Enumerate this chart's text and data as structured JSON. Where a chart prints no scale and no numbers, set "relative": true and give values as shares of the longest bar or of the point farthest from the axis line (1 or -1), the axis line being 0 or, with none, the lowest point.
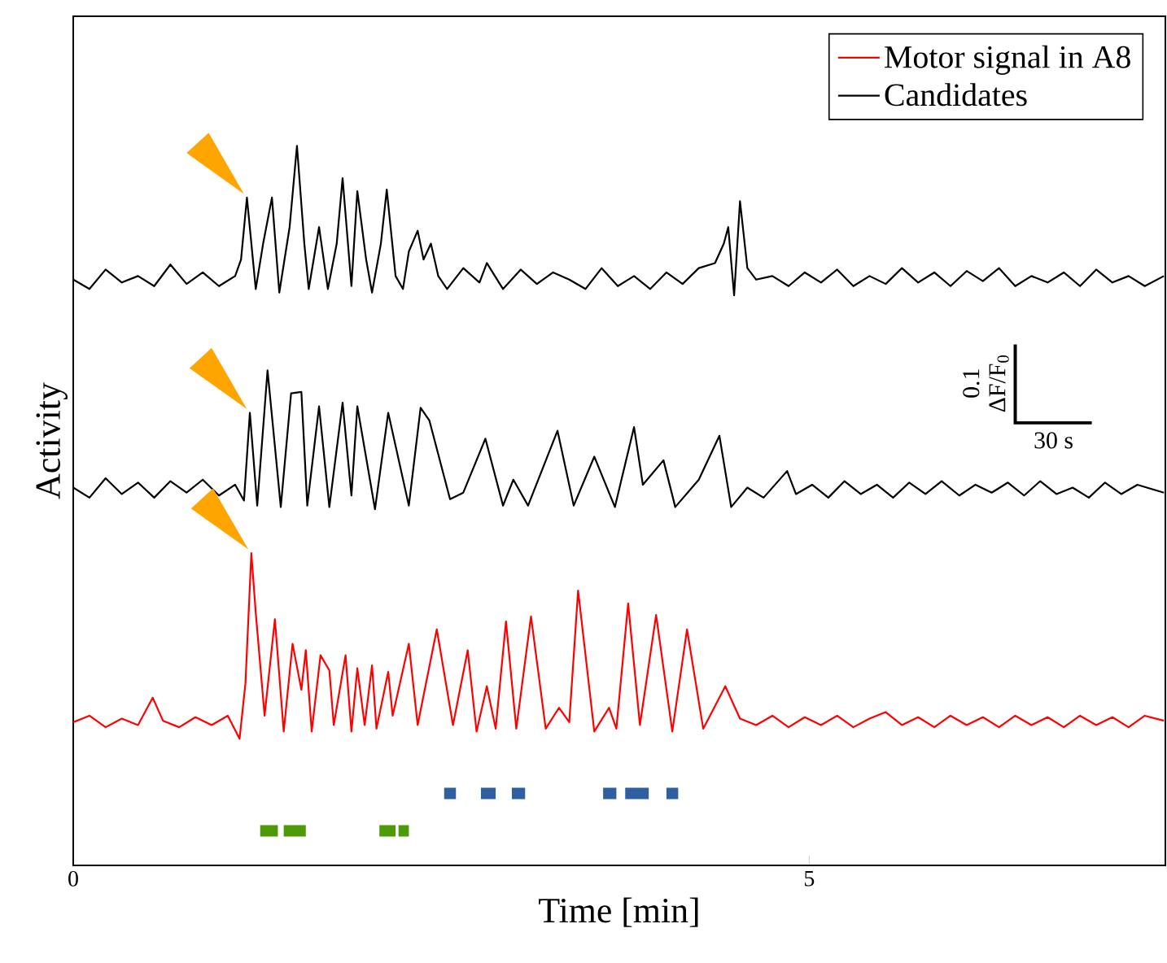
{
  "chart_data": {
    "type": "line",
    "relative": true,
    "xlabel": "Time [min]",
    "ylabel": "Activity",
    "xlim": [
      0,
      7.42
    ],
    "xticks": [
      0,
      5
    ],
    "legend": "top right",
    "annotations": [
      "0.1",
      "ΔF/F$_{0}$",
      "30 s"
    ],
    "series": [
      {
        "name": "Motor signal in A8",
        "color": "#ff0000",
        "x": [
          0,
          0.11,
          0.22,
          0.33,
          0.44,
          0.54,
          0.61,
          0.72,
          0.83,
          0.94,
          1.05,
          1.13,
          1.17,
          1.21,
          1.24,
          1.3,
          1.37,
          1.43,
          1.49,
          1.55,
          1.58,
          1.62,
          1.68,
          1.74,
          1.77,
          1.85,
          1.89,
          1.93,
          1.98,
          2.03,
          2.06,
          2.14,
          2.17,
          2.28,
          2.34,
          2.47,
          2.58,
          2.68,
          2.74,
          2.81,
          2.87,
          2.94,
          3.01,
          3.11,
          3.21,
          3.3,
          3.37,
          3.43,
          3.54,
          3.64,
          3.69,
          3.77,
          3.85,
          3.96,
          4.07,
          4.17,
          4.28,
          4.43,
          4.53,
          4.64,
          4.75,
          4.86,
          4.97,
          5.08,
          5.19,
          5.3,
          5.41,
          5.52,
          5.63,
          5.74,
          5.85,
          5.96,
          6.07,
          6.18,
          6.29,
          6.4,
          6.51,
          6.62,
          6.73,
          6.84,
          6.95,
          7.06,
          7.17,
          7.28,
          7.41
        ],
        "values": [
          0.199,
          0.208,
          0.192,
          0.204,
          0.195,
          0.233,
          0.201,
          0.192,
          0.206,
          0.195,
          0.208,
          0.176,
          0.253,
          0.434,
          0.351,
          0.208,
          0.342,
          0.186,
          0.308,
          0.244,
          0.299,
          0.186,
          0.292,
          0.271,
          0.195,
          0.292,
          0.186,
          0.274,
          0.195,
          0.278,
          0.19,
          0.269,
          0.208,
          0.308,
          0.195,
          0.328,
          0.195,
          0.299,
          0.186,
          0.249,
          0.19,
          0.339,
          0.19,
          0.346,
          0.19,
          0.219,
          0.199,
          0.382,
          0.186,
          0.219,
          0.19,
          0.364,
          0.195,
          0.348,
          0.186,
          0.328,
          0.19,
          0.249,
          0.204,
          0.195,
          0.208,
          0.192,
          0.206,
          0.195,
          0.208,
          0.192,
          0.204,
          0.213,
          0.195,
          0.206,
          0.192,
          0.208,
          0.195,
          0.206,
          0.192,
          0.208,
          0.195,
          0.206,
          0.192,
          0.208,
          0.195,
          0.206,
          0.192,
          0.208,
          0.201
        ]
      },
      {
        "name": "Candidates",
        "color": "#000000",
        "x": [
          0,
          0.11,
          0.22,
          0.33,
          0.44,
          0.55,
          0.66,
          0.77,
          0.88,
          0.99,
          1.1,
          1.14,
          1.18,
          1.24,
          1.29,
          1.35,
          1.4,
          1.47,
          1.52,
          1.57,
          1.6,
          1.67,
          1.73,
          1.79,
          1.83,
          1.89,
          1.93,
          1.99,
          2.03,
          2.09,
          2.13,
          2.19,
          2.24,
          2.28,
          2.34,
          2.38,
          2.43,
          2.48,
          2.54,
          2.65,
          2.76,
          2.81,
          2.92,
          3.04,
          3.15,
          3.26,
          3.37,
          3.48,
          3.59,
          3.7,
          3.81,
          3.92,
          4.03,
          4.14,
          4.25,
          4.36,
          4.42,
          4.45,
          4.49,
          4.53,
          4.58,
          4.64,
          4.75,
          4.86,
          4.97,
          5.08,
          5.19,
          5.3,
          5.41,
          5.52,
          5.63,
          5.74,
          5.85,
          5.96,
          6.07,
          6.18,
          6.29,
          6.4,
          6.51,
          6.62,
          6.73,
          6.84,
          6.95,
          7.06,
          7.17,
          7.28,
          7.41
        ],
        "values": [
          0.814,
          0.801,
          0.828,
          0.81,
          0.819,
          0.805,
          0.835,
          0.808,
          0.824,
          0.805,
          0.819,
          0.842,
          0.928,
          0.801,
          0.864,
          0.928,
          0.796,
          0.887,
          1.0,
          0.864,
          0.801,
          0.887,
          0.801,
          0.864,
          0.955,
          0.805,
          0.937,
          0.842,
          0.796,
          0.864,
          0.939,
          0.819,
          0.801,
          0.853,
          0.882,
          0.842,
          0.864,
          0.819,
          0.801,
          0.83,
          0.81,
          0.837,
          0.801,
          0.828,
          0.808,
          0.824,
          0.814,
          0.801,
          0.83,
          0.805,
          0.819,
          0.801,
          0.824,
          0.808,
          0.83,
          0.837,
          0.864,
          0.887,
          0.792,
          0.923,
          0.83,
          0.814,
          0.819,
          0.805,
          0.824,
          0.81,
          0.828,
          0.805,
          0.819,
          0.808,
          0.83,
          0.81,
          0.824,
          0.805,
          0.826,
          0.812,
          0.83,
          0.805,
          0.819,
          0.81,
          0.824,
          0.805,
          0.828,
          0.81,
          0.819,
          0.805,
          0.819
        ]
      },
      {
        "color": "#000000",
        "x": [
          0,
          0.11,
          0.22,
          0.33,
          0.44,
          0.55,
          0.66,
          0.77,
          0.88,
          0.99,
          1.1,
          1.16,
          1.2,
          1.25,
          1.32,
          1.41,
          1.48,
          1.55,
          1.59,
          1.67,
          1.74,
          1.83,
          1.89,
          1.93,
          2.05,
          2.14,
          2.28,
          2.36,
          2.42,
          2.56,
          2.65,
          2.8,
          2.92,
          2.99,
          3.09,
          3.29,
          3.4,
          3.54,
          3.68,
          3.81,
          3.87,
          4.01,
          4.09,
          4.25,
          4.39,
          4.47,
          4.58,
          4.69,
          4.85,
          4.91,
          5.02,
          5.13,
          5.24,
          5.35,
          5.46,
          5.57,
          5.68,
          5.79,
          5.9,
          6.02,
          6.13,
          6.24,
          6.35,
          6.46,
          6.57,
          6.68,
          6.79,
          6.9,
          7.01,
          7.12,
          7.23,
          7.41
        ],
        "values": [
          0.525,
          0.511,
          0.538,
          0.516,
          0.532,
          0.511,
          0.534,
          0.518,
          0.536,
          0.514,
          0.529,
          0.507,
          0.629,
          0.5,
          0.688,
          0.498,
          0.656,
          0.658,
          0.5,
          0.638,
          0.498,
          0.643,
          0.514,
          0.638,
          0.495,
          0.629,
          0.5,
          0.636,
          0.618,
          0.509,
          0.518,
          0.593,
          0.5,
          0.536,
          0.5,
          0.604,
          0.5,
          0.568,
          0.498,
          0.609,
          0.529,
          0.563,
          0.498,
          0.536,
          0.597,
          0.498,
          0.525,
          0.511,
          0.548,
          0.516,
          0.529,
          0.511,
          0.534,
          0.516,
          0.529,
          0.511,
          0.532,
          0.516,
          0.534,
          0.514,
          0.529,
          0.518,
          0.532,
          0.514,
          0.534,
          0.516,
          0.525,
          0.511,
          0.532,
          0.516,
          0.529,
          0.518
        ]
      },
      {
        "color": "#2f5f9f",
        "x": [
          2.52,
          2.6,
          2.61,
          2.77,
          2.87,
          2.88,
          2.98,
          3.07,
          3.08,
          3.6,
          3.69,
          3.7,
          3.75,
          3.91,
          3.92,
          4.03,
          4.11
        ],
        "values": [
          0.1,
          0.1,
          null,
          0.1,
          0.1,
          null,
          0.1,
          0.1,
          null,
          0.1,
          0.1,
          null,
          0.1,
          0.1,
          null,
          0.1,
          0.1
        ]
      },
      {
        "color": "#4e9a06",
        "x": [
          1.27,
          1.39,
          1.4,
          1.43,
          1.58,
          1.59,
          2.08,
          2.19,
          2.2,
          2.21,
          2.28
        ],
        "values": [
          0.048,
          0.048,
          null,
          0.048,
          0.048,
          null,
          0.048,
          0.048,
          null,
          0.048,
          0.048
        ]
      }
    ]
  }
}
